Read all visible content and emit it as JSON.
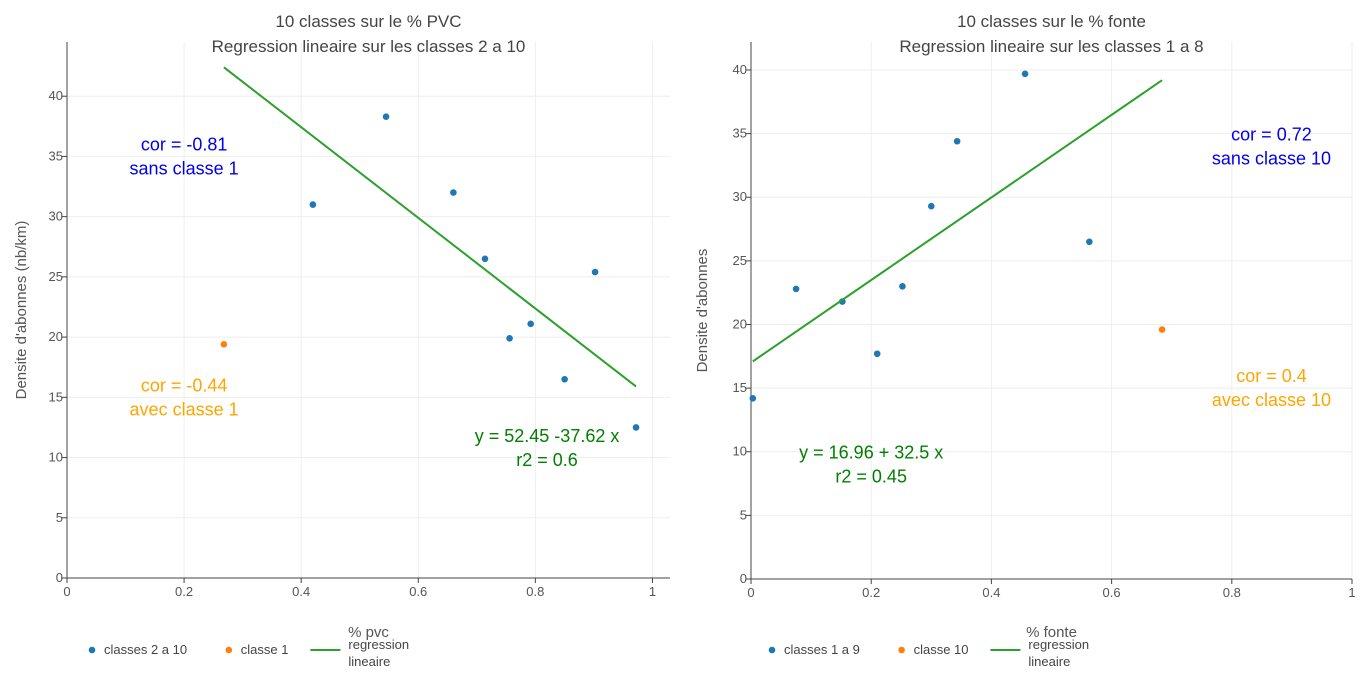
{
  "colors": {
    "blue": "#1f77b4",
    "orange": "#ff7f0e",
    "green": "#2ca02c",
    "anno_blue": "#0000ee",
    "anno_orange": "#ffa500",
    "anno_green": "#008000",
    "grid": "#eeeeee",
    "axis": "#444444"
  },
  "chart_data": [
    {
      "type": "scatter",
      "title": [
        "10 classes sur le % PVC",
        "Regression lineaire sur les classes 2 a 10"
      ],
      "xlabel": "% pvc",
      "ylabel": "Densite d'abonnes (nb/km)",
      "xlim": [
        0,
        1.03
      ],
      "ylim": [
        0,
        44.5
      ],
      "xticks": [
        0,
        0.2,
        0.4,
        0.6,
        0.8,
        1
      ],
      "xtick_labels": [
        "0",
        "0.2",
        "0.4",
        "0.6",
        "0.8",
        "1"
      ],
      "yticks": [
        0,
        5,
        10,
        15,
        20,
        25,
        30,
        35,
        40
      ],
      "ytick_labels": [
        "0",
        "5",
        "10",
        "15",
        "20",
        "25",
        "30",
        "35",
        "40"
      ],
      "grid": true,
      "series": [
        {
          "name": "classes 2 a 10",
          "kind": "markers",
          "color": "#1f77b4",
          "x": [
            0.42,
            0.545,
            0.66,
            0.714,
            0.756,
            0.792,
            0.85,
            0.902,
            0.972
          ],
          "y": [
            31,
            38.3,
            32,
            26.5,
            19.9,
            21.1,
            16.5,
            25.4,
            12.5
          ]
        },
        {
          "name": "classe 1",
          "kind": "markers",
          "color": "#ff7f0e",
          "x": [
            0.268
          ],
          "y": [
            19.4
          ]
        },
        {
          "name": "regression\nlineaire",
          "kind": "line",
          "color": "#2ca02c",
          "x": [
            0.268,
            0.972
          ],
          "y": [
            42.4,
            15.9
          ]
        }
      ],
      "annotations": [
        {
          "lines": [
            "cor = -0.81",
            "sans classe 1"
          ],
          "x": 0.2,
          "y": 35,
          "color": "#0000ee"
        },
        {
          "lines": [
            "cor = -0.44",
            "avec classe 1"
          ],
          "x": 0.2,
          "y": 15,
          "color": "#ffa500"
        },
        {
          "lines": [
            "y = 52.45 -37.62 x",
            "r2 = 0.6"
          ],
          "x": 0.82,
          "y": 10.8,
          "color": "#008000"
        }
      ],
      "legend": {
        "position": "bottom-left",
        "items": [
          {
            "label": "classes 2 a 10",
            "kind": "marker",
            "color": "#1f77b4"
          },
          {
            "label": "classe 1",
            "kind": "marker",
            "color": "#ff7f0e"
          },
          {
            "label": "regression\nlineaire",
            "kind": "line",
            "color": "#2ca02c"
          }
        ]
      }
    },
    {
      "type": "scatter",
      "title": [
        "10 classes sur le % fonte",
        "Regression lineaire sur les classes 1 a 8"
      ],
      "xlabel": "% fonte",
      "ylabel": "Densite d'abonnes",
      "xlim": [
        0,
        1
      ],
      "ylim": [
        0,
        42.2
      ],
      "xticks": [
        0,
        0.2,
        0.4,
        0.6,
        0.8,
        1
      ],
      "xtick_labels": [
        "0",
        "0.2",
        "0.4",
        "0.6",
        "0.8",
        "1"
      ],
      "yticks": [
        0,
        5,
        10,
        15,
        20,
        25,
        30,
        35,
        40
      ],
      "ytick_labels": [
        "0",
        "5",
        "10",
        "15",
        "20",
        "25",
        "30",
        "35",
        "40"
      ],
      "grid": true,
      "series": [
        {
          "name": "classes 1 a 9",
          "kind": "markers",
          "color": "#1f77b4",
          "x": [
            0.003,
            0.075,
            0.152,
            0.21,
            0.252,
            0.3,
            0.343,
            0.456,
            0.563
          ],
          "y": [
            14.2,
            22.8,
            21.8,
            17.7,
            23,
            29.3,
            34.4,
            39.7,
            26.5
          ]
        },
        {
          "name": "classe 10",
          "kind": "markers",
          "color": "#ff7f0e",
          "x": [
            0.684
          ],
          "y": [
            19.6
          ]
        },
        {
          "name": "regression\nlineaire",
          "kind": "line",
          "color": "#2ca02c",
          "x": [
            0.003,
            0.684
          ],
          "y": [
            17.1,
            39.2
          ]
        }
      ],
      "annotations": [
        {
          "lines": [
            "cor = 0.72",
            "sans classe 10"
          ],
          "x": 0.866,
          "y": 34,
          "color": "#0000ee"
        },
        {
          "lines": [
            "cor = 0.4",
            "avec classe 10"
          ],
          "x": 0.866,
          "y": 15,
          "color": "#ffa500"
        },
        {
          "lines": [
            "y = 16.96 + 32.5 x",
            "r2 = 0.45"
          ],
          "x": 0.2,
          "y": 9,
          "color": "#008000"
        }
      ],
      "legend": {
        "position": "bottom-left",
        "items": [
          {
            "label": "classes 1 a 9",
            "kind": "marker",
            "color": "#1f77b4"
          },
          {
            "label": "classe 10",
            "kind": "marker",
            "color": "#ff7f0e"
          },
          {
            "label": "regression\nlineaire",
            "kind": "line",
            "color": "#2ca02c"
          }
        ]
      }
    }
  ]
}
